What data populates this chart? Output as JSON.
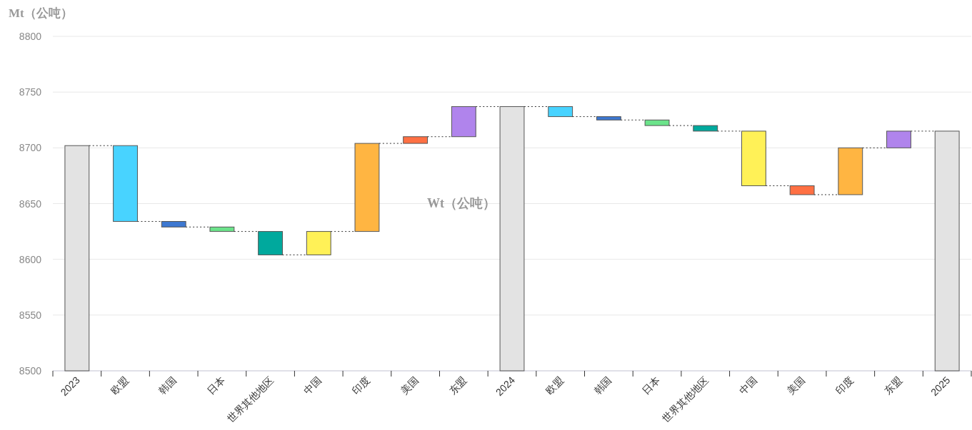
{
  "chart_data": {
    "type": "bar",
    "ylabel": "Mt（公吨）",
    "categories": [
      "2023",
      "欧盟",
      "韩国",
      "日本",
      "世界其他地区",
      "中国",
      "印度",
      "美国",
      "东盟",
      "2024",
      "欧盟",
      "韩国",
      "日本",
      "世界其他地区",
      "中国",
      "美国",
      "印度",
      "东盟",
      "2025"
    ],
    "base": [
      8500,
      8702,
      8634,
      8629,
      8625,
      8604,
      8625,
      8704,
      8710,
      8500,
      8737,
      8728,
      8725,
      8720,
      8715,
      8666,
      8658,
      8700,
      8500
    ],
    "values": [
      202,
      -68,
      -5,
      -4,
      -21,
      21,
      79,
      6,
      27,
      237,
      -9,
      -3,
      -5,
      -5,
      -49,
      -8,
      42,
      15,
      215
    ],
    "colors": [
      "#e3e3e3",
      "#48d3ff",
      "#3d78d1",
      "#6be38a",
      "#00a99d",
      "#fff157",
      "#ffb542",
      "#ff7043",
      "#b084ec",
      "#e3e3e3",
      "#48d3ff",
      "#3d78d1",
      "#6be38a",
      "#00a99d",
      "#fff157",
      "#ff7043",
      "#ffb542",
      "#b084ec",
      "#e3e3e3"
    ],
    "ylim": [
      8500,
      8800
    ],
    "yticks": [
      8500,
      8550,
      8600,
      8650,
      8700,
      8750,
      8800
    ],
    "grid": "y",
    "annotations": [
      "Wt（公吨）"
    ]
  }
}
